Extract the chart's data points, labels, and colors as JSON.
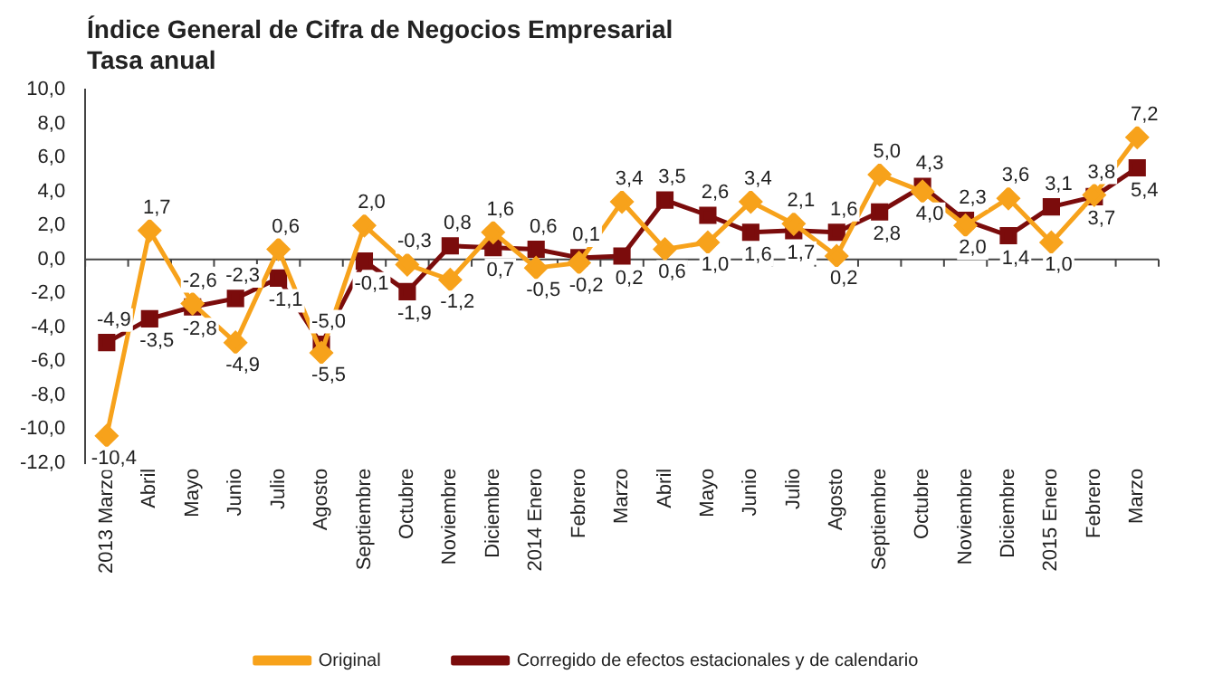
{
  "chart_data": {
    "type": "line",
    "title": "Índice General de Cifra de Negocios Empresarial",
    "subtitle": "Tasa anual",
    "categories": [
      "2013 Marzo",
      "Abril",
      "Mayo",
      "Junio",
      "Julio",
      "Agosto",
      "Septiembre",
      "Octubre",
      "Noviembre",
      "Diciembre",
      "2014 Enero",
      "Febrero",
      "Marzo",
      "Abril",
      "Mayo",
      "Junio",
      "Julio",
      "Agosto",
      "Septiembre",
      "Octubre",
      "Noviembre",
      "Diciembre",
      "2015 Enero",
      "Febrero",
      "Marzo"
    ],
    "series": [
      {
        "name": "Original",
        "color": "#f7a21b",
        "marker": "diamond",
        "values": [
          -10.4,
          1.7,
          -2.6,
          -4.9,
          0.6,
          -5.5,
          2.0,
          -0.3,
          -1.2,
          1.6,
          -0.5,
          -0.2,
          3.4,
          0.6,
          1.0,
          3.4,
          2.1,
          0.2,
          5.0,
          4.0,
          2.0,
          3.6,
          1.0,
          3.8,
          7.2
        ],
        "value_labels": [
          "-10,4",
          "1,7",
          "-2,6",
          "-4,9",
          "0,6",
          "-5,5",
          "2,0",
          "-0,3",
          "-1,2",
          "1,6",
          "-0,5",
          "-0,2",
          "3,4",
          "0,6",
          "1,0",
          "3,4",
          "2,1",
          "0,2",
          "5,0",
          "4,0",
          "2,0",
          "3,6",
          "1,0",
          "3,8",
          "7,2"
        ]
      },
      {
        "name": "Corregido de efectos estacionales y de calendario",
        "color": "#7b0c0c",
        "marker": "square",
        "values": [
          -4.9,
          -3.5,
          -2.8,
          -2.3,
          -1.1,
          -5.0,
          -0.1,
          -1.9,
          0.8,
          0.7,
          0.6,
          0.1,
          0.2,
          3.5,
          2.6,
          1.6,
          1.7,
          1.6,
          2.8,
          4.3,
          2.3,
          1.4,
          3.1,
          3.7,
          5.4
        ],
        "value_labels": [
          "-4,9",
          "-3,5",
          "-2,8",
          "-2,3",
          "-1,1",
          "-5,0",
          "-0,1",
          "-1,9",
          "0,8",
          "0,7",
          "0,6",
          "0,1",
          "0,2",
          "3,5",
          "2,6",
          "1,6",
          "1,7",
          "1,6",
          "2,8",
          "4,3",
          "2,3",
          "1,4",
          "3,1",
          "3,7",
          "5,4"
        ]
      }
    ],
    "ylim": [
      -12,
      10
    ],
    "yticks": [
      {
        "value": -12,
        "label": "-12,0"
      },
      {
        "value": -10,
        "label": "-10,0"
      },
      {
        "value": -8,
        "label": "-8,0"
      },
      {
        "value": -6,
        "label": "-6,0"
      },
      {
        "value": -4,
        "label": "-4,0"
      },
      {
        "value": -2,
        "label": "-2,0"
      },
      {
        "value": 0,
        "label": "0,0"
      },
      {
        "value": 2,
        "label": "2,0"
      },
      {
        "value": 4,
        "label": "4,0"
      },
      {
        "value": 6,
        "label": "6,0"
      },
      {
        "value": 8,
        "label": "8,0"
      },
      {
        "value": 10,
        "label": "10,0"
      }
    ],
    "ref_lines": [
      {
        "axis": "y",
        "value": 0,
        "color": "#444444"
      }
    ],
    "grid": false,
    "legend": "bottom",
    "line_style": "solid"
  }
}
